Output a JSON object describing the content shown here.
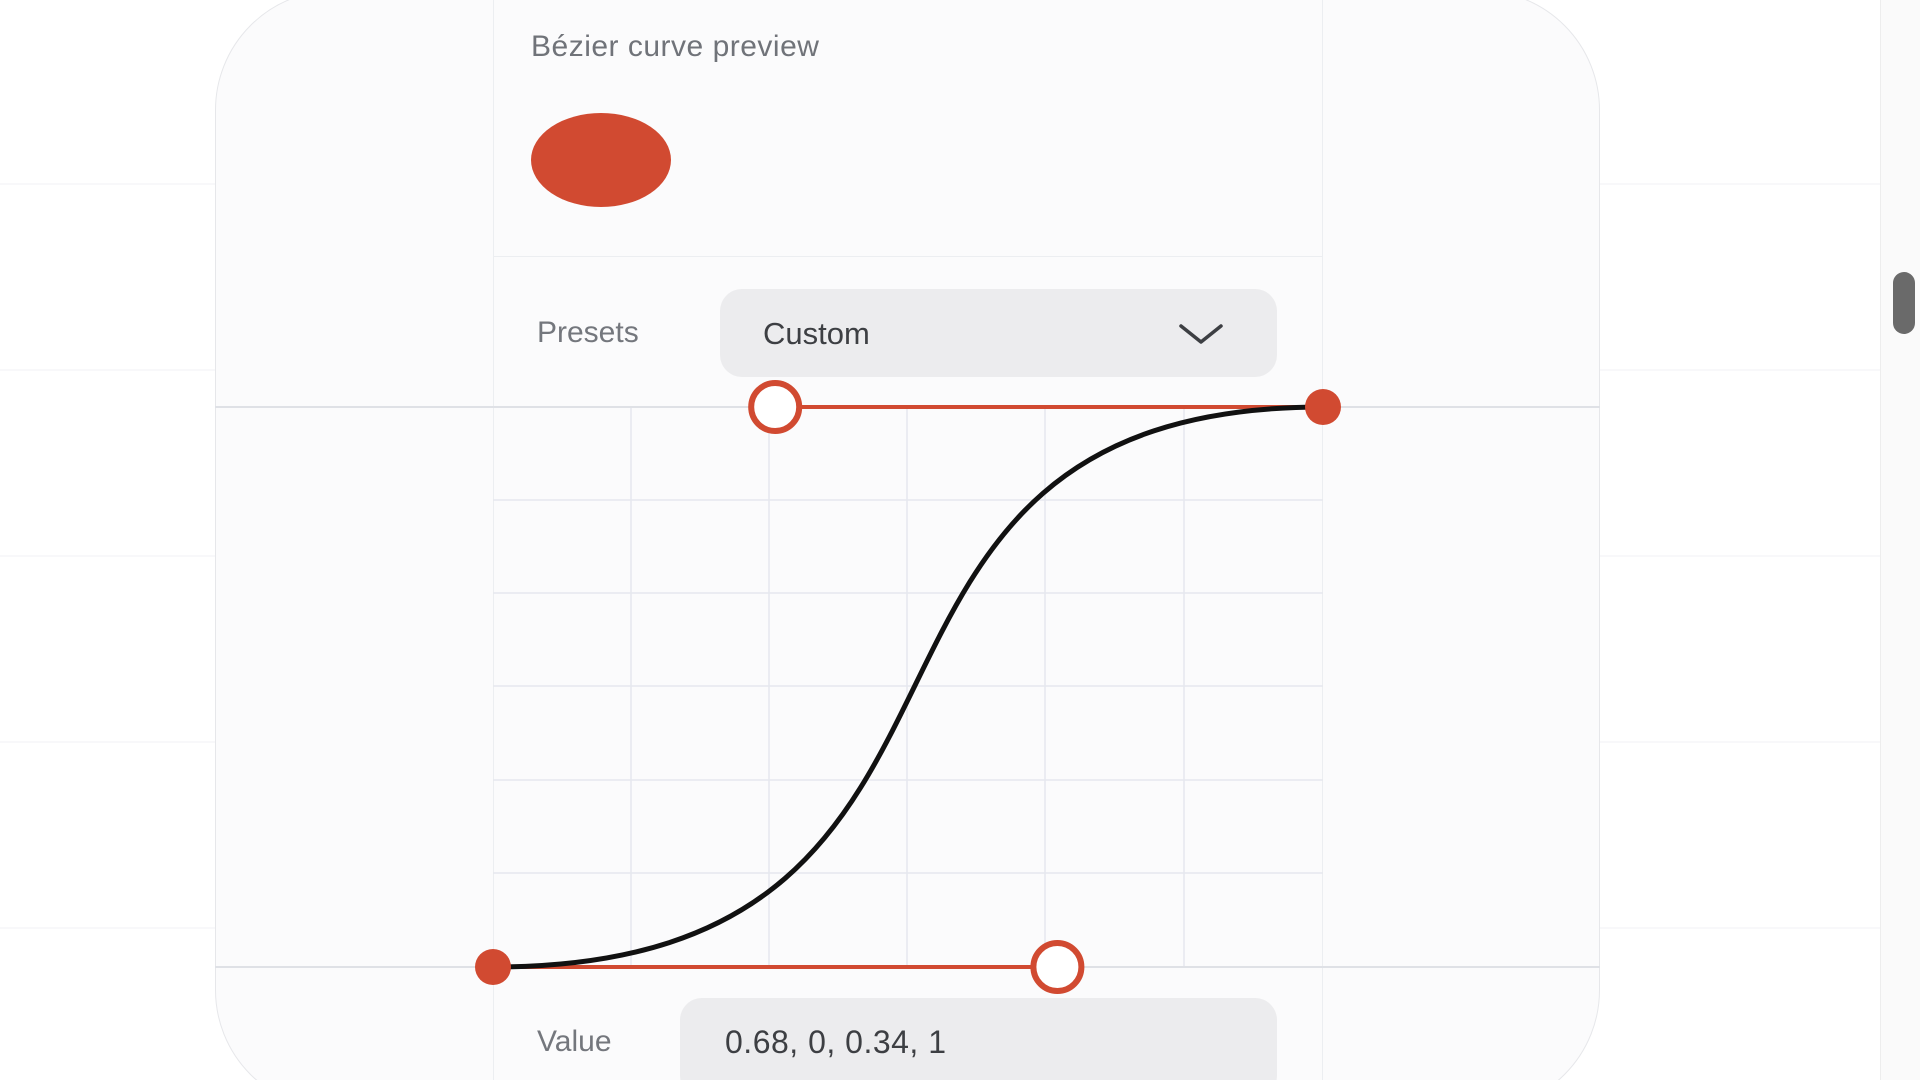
{
  "preview": {
    "title": "Bézier curve preview"
  },
  "presets": {
    "label": "Presets",
    "selected": "Custom"
  },
  "value": {
    "label": "Value",
    "text": "0.68, 0, 0.34, 1"
  },
  "bezier": {
    "p1": [
      0.68,
      0
    ],
    "p2": [
      0.34,
      1
    ]
  },
  "colors": {
    "accent": "#d14a31",
    "curve": "#111111",
    "grid": "#e6e8ee"
  },
  "icons": {
    "dropdown": "chevron-down-icon"
  }
}
